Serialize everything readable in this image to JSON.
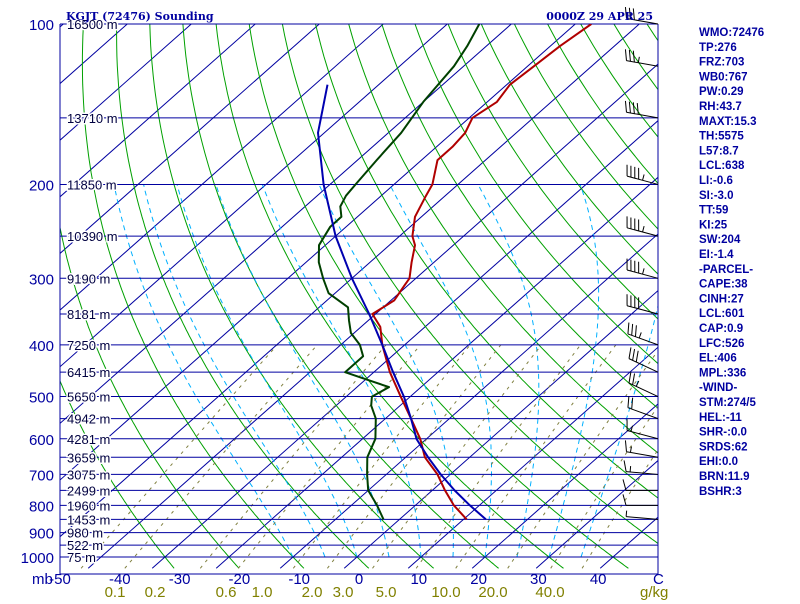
{
  "header": {
    "station": "KGJT (72476) Sounding",
    "time": "0000Z 29 APR 25"
  },
  "colors": {
    "isobar": "#0000a0",
    "axis": "#0000a0",
    "isotherm": "#0000a0",
    "dry_adiabat": "#00a000",
    "moist_adiabat": "#00b0ff",
    "mixing_ratio": "#808040",
    "temperature": "#b00000",
    "dewpoint": "#004000",
    "parcel": "#0000b0",
    "wind_barb": "#000000",
    "params_text": "#0000a0",
    "mix_label": "#808000",
    "background": "#ffffff"
  },
  "params": [
    "WMO:72476",
    "TP:276",
    "FRZ:703",
    "WB0:767",
    "PW:0.29",
    "RH:43.7",
    "MAXT:15.3",
    "TH:5575",
    "L57:8.7",
    "LCL:638",
    "LI:-0.6",
    "SI:-3.0",
    "TT:59",
    "KI:25",
    "SW:204",
    "EI:-1.4",
    "-PARCEL-",
    "CAPE:38",
    "CINH:27",
    "LCL:601",
    "CAP:0.9",
    "LFC:526",
    "EL:406",
    "MPL:336",
    "-WIND-",
    "STM:274/5",
    "HEL:-11",
    "SHR-:0.0",
    "SRDS:62",
    "EHI:0.0",
    "BRN:11.9",
    "BSHR:3"
  ],
  "chart_data": {
    "type": "line",
    "diagram": "skew-t log-p",
    "y_axis_unit": "mb",
    "x_axis_unit": "C",
    "mixing_ratio_unit": "g/kg",
    "ylim": [
      1000,
      100
    ],
    "xlim": [
      -50,
      50
    ],
    "pressure_ticks": [
      100,
      200,
      300,
      400,
      500,
      600,
      700,
      800,
      900,
      1000
    ],
    "temperature_ticks": [
      -50,
      -40,
      -30,
      -20,
      -10,
      0,
      10,
      20,
      30,
      40
    ],
    "mixing_ratio_labels": [
      "0.1",
      "0.2",
      "0.6",
      "1.0",
      "2.0",
      "3.0",
      "5.0",
      "10.0",
      "20.0",
      "40.0"
    ],
    "height_labels": [
      {
        "p": 100,
        "label": "16500 m"
      },
      {
        "p": 150,
        "label": "13710 m"
      },
      {
        "p": 200,
        "label": "11850 m"
      },
      {
        "p": 250,
        "label": "10390 m"
      },
      {
        "p": 300,
        "label": "9190 m"
      },
      {
        "p": 350,
        "label": "8181 m"
      },
      {
        "p": 400,
        "label": "7250 m"
      },
      {
        "p": 450,
        "label": "6415 m"
      },
      {
        "p": 500,
        "label": "5650 m"
      },
      {
        "p": 550,
        "label": "4942 m"
      },
      {
        "p": 600,
        "label": "4281 m"
      },
      {
        "p": 650,
        "label": "3659 m"
      },
      {
        "p": 700,
        "label": "3075 m"
      },
      {
        "p": 750,
        "label": "2499 m"
      },
      {
        "p": 800,
        "label": "1960 m"
      },
      {
        "p": 850,
        "label": "1453 m"
      },
      {
        "p": 900,
        "label": "980 m"
      },
      {
        "p": 950,
        "label": "522 m"
      },
      {
        "p": 1000,
        "label": "75 m"
      }
    ],
    "series": [
      {
        "name": "temperature",
        "p": [
          850,
          800,
          750,
          700,
          650,
          600,
          550,
          500,
          450,
          400,
          370,
          350,
          330,
          310,
          300,
          280,
          260,
          250,
          230,
          210,
          200,
          180,
          170,
          160,
          150,
          140,
          130,
          120,
          110,
          100
        ],
        "t": [
          10.5,
          6.0,
          2.0,
          -2.0,
          -7.0,
          -11.0,
          -16.0,
          -21.5,
          -27.5,
          -33.5,
          -37.0,
          -40.5,
          -39.5,
          -40.5,
          -41.0,
          -43.5,
          -46.0,
          -48.0,
          -51.0,
          -53.0,
          -54.0,
          -57.5,
          -57.5,
          -58.0,
          -59.5,
          -58.5,
          -59.5,
          -59.0,
          -58.5,
          -57.5
        ]
      },
      {
        "name": "dewpoint",
        "p": [
          850,
          800,
          750,
          700,
          650,
          600,
          550,
          520,
          500,
          480,
          450,
          420,
          400,
          380,
          360,
          340,
          320,
          300,
          280,
          260,
          240,
          230,
          220,
          210,
          200,
          180,
          160,
          140,
          120,
          110,
          100
        ],
        "t": [
          -2.5,
          -6.0,
          -10.0,
          -13.0,
          -16.0,
          -18.0,
          -21.5,
          -24.5,
          -26.0,
          -25.0,
          -34.5,
          -34.5,
          -37.0,
          -40.5,
          -43.0,
          -45.5,
          -51.0,
          -54.5,
          -58.0,
          -61.0,
          -62.5,
          -62.5,
          -64.5,
          -65.5,
          -66.0,
          -67.0,
          -68.0,
          -70.0,
          -71.5,
          -73.0,
          -75.0
        ]
      },
      {
        "name": "parcel",
        "p": [
          850,
          800,
          750,
          700,
          650,
          601,
          550,
          500,
          450,
          400,
          350,
          300,
          250,
          200,
          160,
          130
        ],
        "t": [
          13.5,
          8.5,
          3.5,
          -1.5,
          -6.5,
          -11.5,
          -16.0,
          -21.0,
          -27.0,
          -33.5,
          -41.0,
          -50.0,
          -60.0,
          -71.0,
          -81.0,
          -88.0
        ]
      }
    ],
    "winds": [
      {
        "p": 850,
        "dir": 275,
        "spd": 5
      },
      {
        "p": 800,
        "dir": 270,
        "spd": 10
      },
      {
        "p": 750,
        "dir": 270,
        "spd": 10
      },
      {
        "p": 700,
        "dir": 275,
        "spd": 15
      },
      {
        "p": 650,
        "dir": 280,
        "spd": 15
      },
      {
        "p": 600,
        "dir": 285,
        "spd": 15
      },
      {
        "p": 550,
        "dir": 290,
        "spd": 20
      },
      {
        "p": 500,
        "dir": 295,
        "spd": 25
      },
      {
        "p": 450,
        "dir": 295,
        "spd": 30
      },
      {
        "p": 400,
        "dir": 290,
        "spd": 35
      },
      {
        "p": 350,
        "dir": 285,
        "spd": 40
      },
      {
        "p": 300,
        "dir": 285,
        "spd": 45
      },
      {
        "p": 250,
        "dir": 285,
        "spd": 45
      },
      {
        "p": 200,
        "dir": 285,
        "spd": 45
      },
      {
        "p": 150,
        "dir": 280,
        "spd": 40
      },
      {
        "p": 120,
        "dir": 280,
        "spd": 35
      },
      {
        "p": 100,
        "dir": 280,
        "spd": 30
      }
    ]
  }
}
